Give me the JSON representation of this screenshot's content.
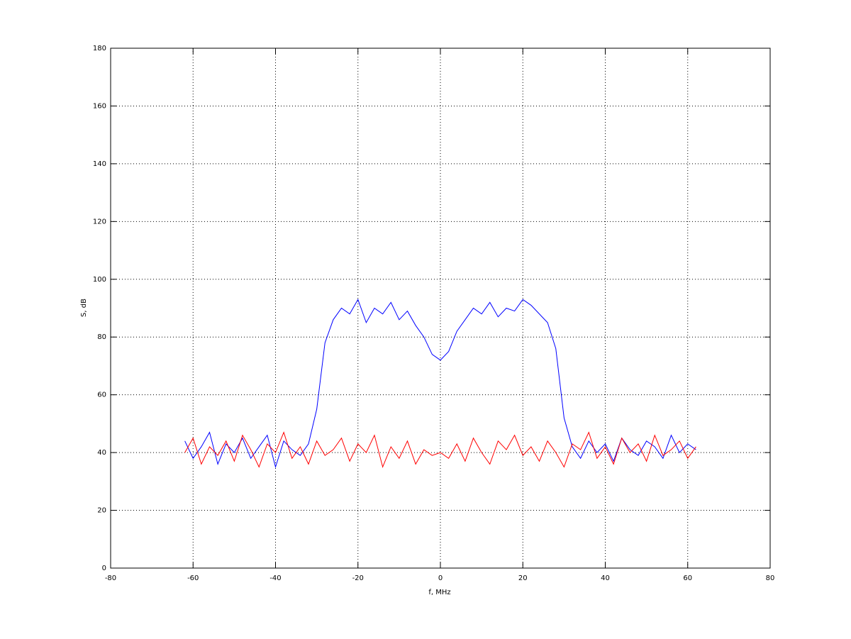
{
  "chart_data": {
    "type": "line",
    "xlabel": "f, MHz",
    "ylabel": "S, dB",
    "x": [
      -62,
      -60,
      -58,
      -56,
      -54,
      -52,
      -50,
      -48,
      -46,
      -44,
      -42,
      -40,
      -38,
      -36,
      -34,
      -32,
      -30,
      -28,
      -26,
      -24,
      -22,
      -20,
      -18,
      -16,
      -14,
      -12,
      -10,
      -8,
      -6,
      -4,
      -2,
      0,
      2,
      4,
      6,
      8,
      10,
      12,
      14,
      16,
      18,
      20,
      22,
      24,
      26,
      28,
      30,
      32,
      34,
      36,
      38,
      40,
      42,
      44,
      46,
      48,
      50,
      52,
      54,
      56,
      58,
      60,
      62
    ],
    "series": [
      {
        "name": "blue",
        "color": "#0000ff",
        "values": [
          44,
          38,
          42,
          47,
          36,
          43,
          40,
          45,
          38,
          42,
          46,
          35,
          44,
          41,
          39,
          43,
          55,
          78,
          86,
          90,
          88,
          93,
          85,
          90,
          88,
          92,
          86,
          89,
          84,
          80,
          74,
          72,
          75,
          82,
          86,
          90,
          88,
          92,
          87,
          90,
          89,
          93,
          91,
          88,
          85,
          76,
          52,
          42,
          38,
          44,
          40,
          43,
          37,
          45,
          41,
          39,
          44,
          42,
          38,
          46,
          40,
          43,
          41
        ]
      },
      {
        "name": "red",
        "color": "#ff0000",
        "values": [
          40,
          45,
          36,
          42,
          39,
          44,
          37,
          46,
          41,
          35,
          43,
          40,
          47,
          38,
          42,
          36,
          44,
          39,
          41,
          45,
          37,
          43,
          40,
          46,
          35,
          42,
          38,
          44,
          36,
          41,
          39,
          40,
          38,
          43,
          37,
          45,
          40,
          36,
          44,
          41,
          46,
          39,
          42,
          37,
          44,
          40,
          35,
          43,
          41,
          47,
          38,
          42,
          36,
          45,
          40,
          43,
          37,
          46,
          39,
          41,
          44,
          38,
          42
        ]
      }
    ],
    "xlim": [
      -80,
      80
    ],
    "xticks": [
      -80,
      -60,
      -40,
      -20,
      0,
      20,
      40,
      60,
      80
    ],
    "ylim": [
      0,
      180
    ],
    "yticks": [
      0,
      20,
      40,
      60,
      80,
      100,
      120,
      140,
      160,
      180
    ],
    "grid": true
  }
}
